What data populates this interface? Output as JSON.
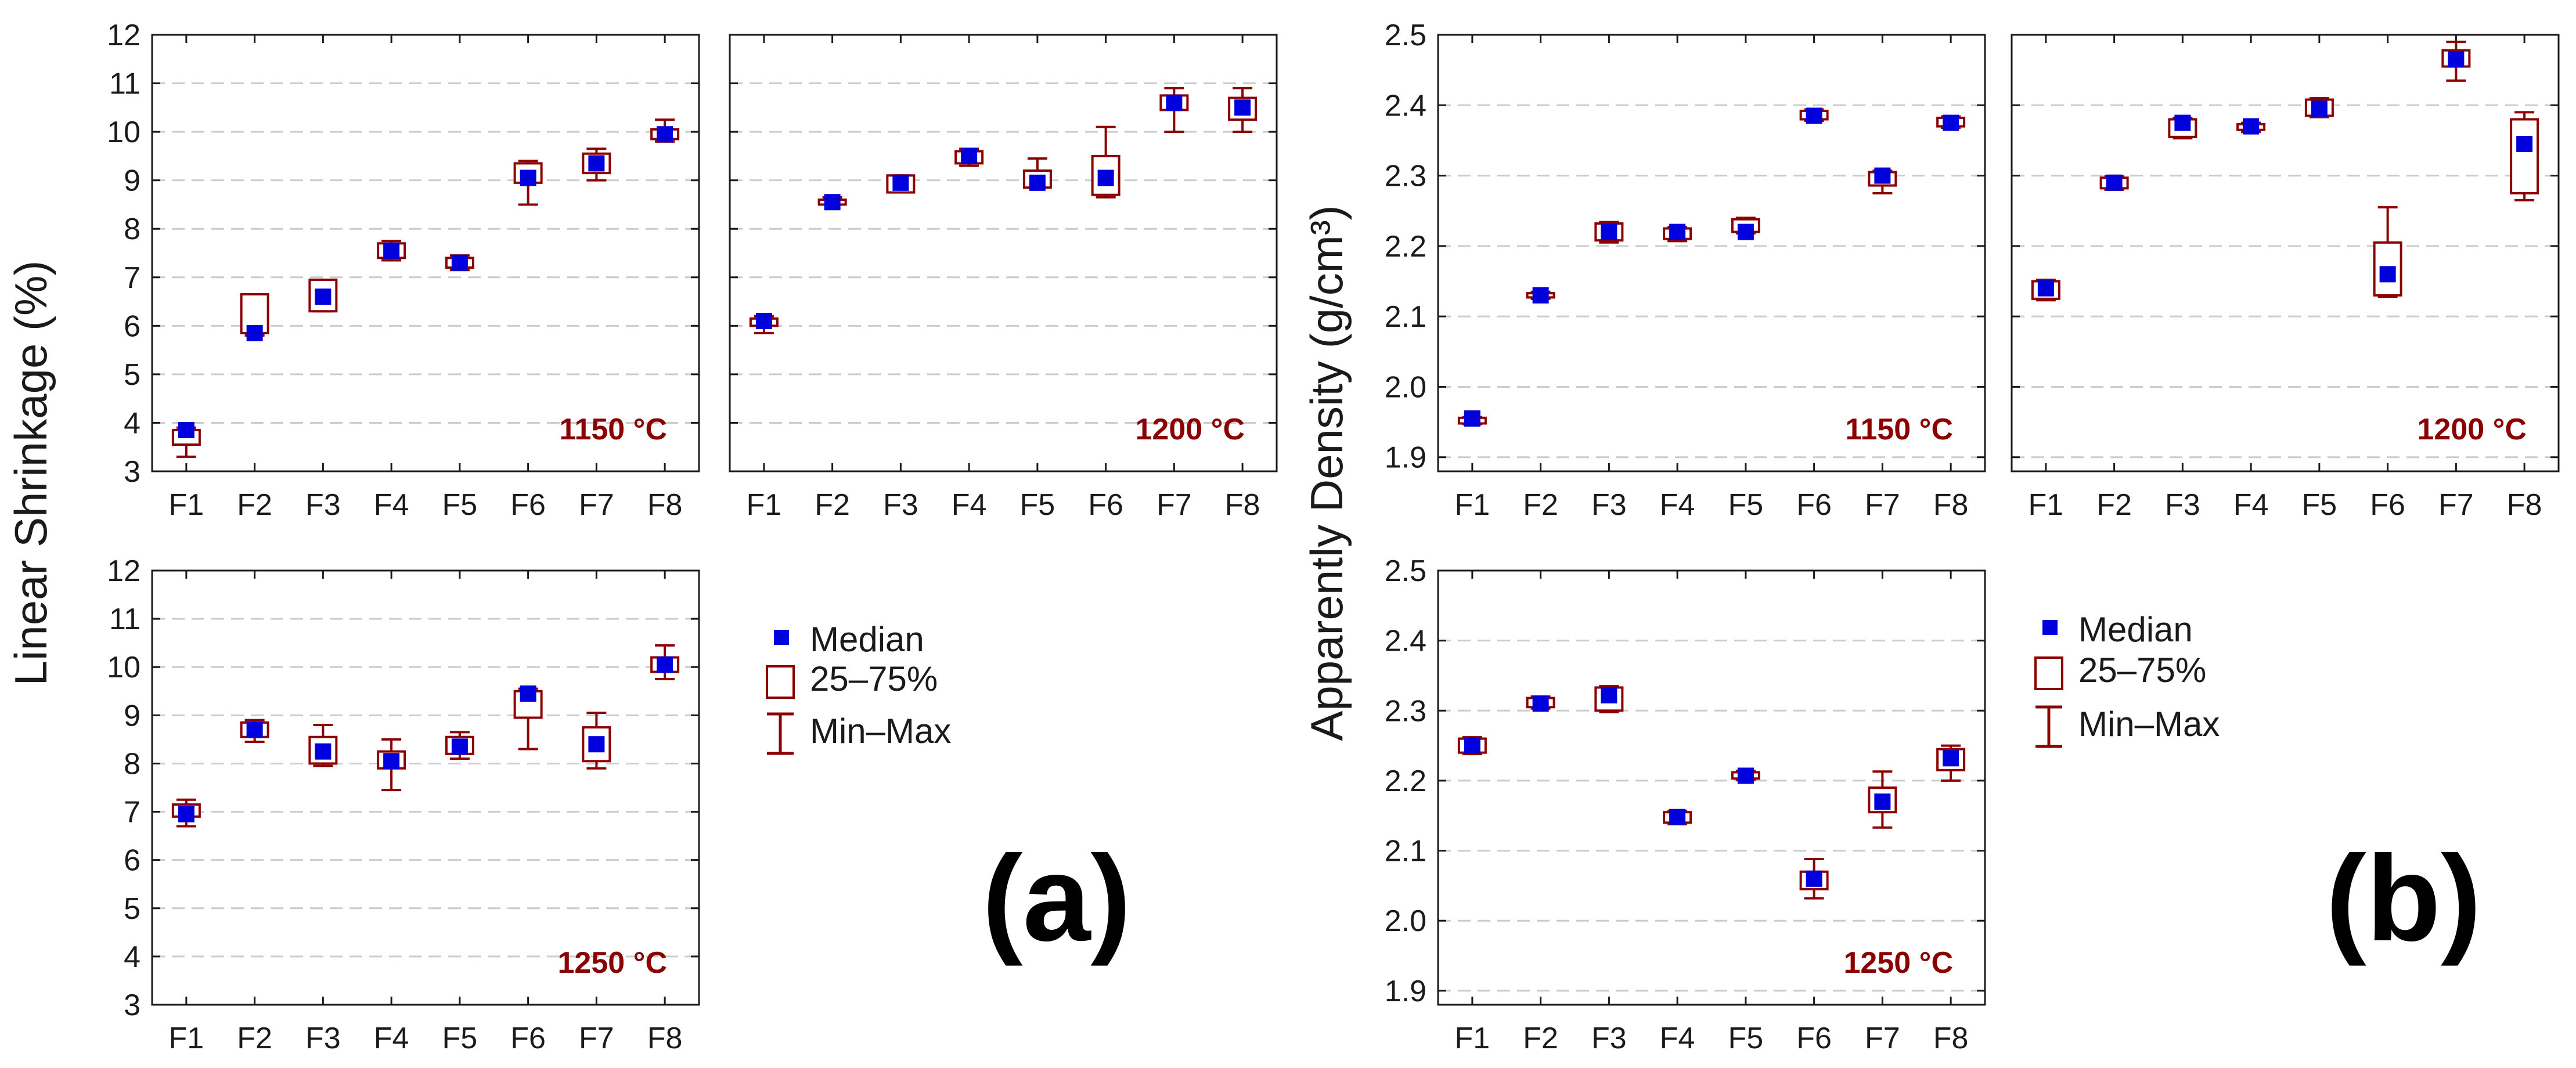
{
  "colors": {
    "median": "#0000dd",
    "box": "#8b0000",
    "whisker": "#8b0000",
    "temp_label": "#8b0000",
    "grid": "#cccccc",
    "axis": "#1a1a1a"
  },
  "figure": {
    "panel_a_label": "(a)",
    "panel_b_label": "(b)"
  },
  "legends": [
    {
      "median_label": "Median",
      "box_label": "25–75%",
      "range_label": "Min–Max"
    },
    {
      "median_label": "Median",
      "box_label": "25–75%",
      "range_label": "Min–Max"
    }
  ],
  "chart_data": [
    {
      "type": "box",
      "title": "1150 °C",
      "group": "a",
      "ylabel": "Linear Shrinkage (%)",
      "ylim": [
        3,
        12
      ],
      "yticks": [
        "3",
        "4",
        "5",
        "6",
        "7",
        "8",
        "9",
        "10",
        "11",
        "12"
      ],
      "categories": [
        "F1",
        "F2",
        "F3",
        "F4",
        "F5",
        "F6",
        "F7",
        "F8"
      ],
      "median": [
        3.85,
        5.85,
        6.6,
        7.55,
        7.3,
        9.05,
        9.35,
        9.95
      ],
      "q1": [
        3.55,
        5.85,
        6.3,
        7.4,
        7.2,
        8.95,
        9.15,
        9.85
      ],
      "q3": [
        3.85,
        6.65,
        6.95,
        7.7,
        7.4,
        9.35,
        9.55,
        10.05
      ],
      "min": [
        3.3,
        5.8,
        6.3,
        7.35,
        7.15,
        8.5,
        9.0,
        9.8
      ],
      "max": [
        3.9,
        6.65,
        6.95,
        7.75,
        7.45,
        9.4,
        9.65,
        10.25
      ]
    },
    {
      "type": "box",
      "title": "1200 °C",
      "group": "a",
      "ylabel": "Linear Shrinkage (%)",
      "ylim": [
        3,
        12
      ],
      "yticks": [
        "3",
        "4",
        "5",
        "6",
        "7",
        "8",
        "9",
        "10",
        "11",
        "12"
      ],
      "categories": [
        "F1",
        "F2",
        "F3",
        "F4",
        "F5",
        "F6",
        "F7",
        "F8"
      ],
      "median": [
        6.1,
        8.55,
        8.95,
        9.5,
        8.95,
        9.05,
        10.6,
        10.5
      ],
      "q1": [
        6.0,
        8.5,
        8.75,
        9.35,
        8.85,
        8.7,
        10.45,
        10.25
      ],
      "q3": [
        6.15,
        8.6,
        9.1,
        9.6,
        9.2,
        9.5,
        10.75,
        10.7
      ],
      "min": [
        5.85,
        8.5,
        8.75,
        9.3,
        8.85,
        8.65,
        10.0,
        10.0
      ],
      "max": [
        6.2,
        8.65,
        9.1,
        9.65,
        9.45,
        10.1,
        10.9,
        10.9
      ]
    },
    {
      "type": "box",
      "title": "1250 °C",
      "group": "a",
      "ylabel": "Linear Shrinkage (%)",
      "ylim": [
        3,
        12
      ],
      "yticks": [
        "3",
        "4",
        "5",
        "6",
        "7",
        "8",
        "9",
        "10",
        "11",
        "12"
      ],
      "categories": [
        "F1",
        "F2",
        "F3",
        "F4",
        "F5",
        "F6",
        "F7",
        "F8"
      ],
      "median": [
        6.95,
        8.7,
        8.25,
        8.05,
        8.35,
        9.45,
        8.4,
        10.05
      ],
      "q1": [
        6.9,
        8.55,
        8.0,
        7.9,
        8.2,
        8.95,
        8.05,
        9.9
      ],
      "q3": [
        7.15,
        8.85,
        8.55,
        8.25,
        8.55,
        9.5,
        8.75,
        10.2
      ],
      "min": [
        6.7,
        8.45,
        7.95,
        7.45,
        8.1,
        8.3,
        7.9,
        9.75
      ],
      "max": [
        7.25,
        8.9,
        8.8,
        8.5,
        8.65,
        9.55,
        9.05,
        10.45
      ]
    },
    {
      "type": "box",
      "title": "1150 °C",
      "group": "b",
      "ylabel": "Apparently Density (g/cm³)",
      "ylim": [
        1.88,
        2.5
      ],
      "yticks": [
        "1.9",
        "2.0",
        "2.1",
        "2.2",
        "2.3",
        "2.4",
        "2.5"
      ],
      "categories": [
        "F1",
        "F2",
        "F3",
        "F4",
        "F5",
        "F6",
        "F7",
        "F8"
      ],
      "median": [
        1.955,
        2.13,
        2.22,
        2.22,
        2.22,
        2.385,
        2.3,
        2.375
      ],
      "q1": [
        1.948,
        2.127,
        2.208,
        2.21,
        2.22,
        2.38,
        2.286,
        2.37
      ],
      "q3": [
        1.956,
        2.133,
        2.232,
        2.225,
        2.238,
        2.392,
        2.305,
        2.382
      ],
      "min": [
        1.947,
        2.125,
        2.205,
        2.207,
        2.218,
        2.378,
        2.275,
        2.368
      ],
      "max": [
        1.957,
        2.135,
        2.234,
        2.227,
        2.24,
        2.394,
        2.307,
        2.384
      ]
    },
    {
      "type": "box",
      "title": "1200 °C",
      "group": "b",
      "ylabel": "Apparently Density (g/cm³)",
      "ylim": [
        1.88,
        2.5
      ],
      "yticks": [
        "1.9",
        "2.0",
        "2.1",
        "2.2",
        "2.3",
        "2.4",
        "2.5"
      ],
      "categories": [
        "F1",
        "F2",
        "F3",
        "F4",
        "F5",
        "F6",
        "F7",
        "F8"
      ],
      "median": [
        2.14,
        2.29,
        2.375,
        2.37,
        2.395,
        2.16,
        2.465,
        2.345
      ],
      "q1": [
        2.125,
        2.282,
        2.355,
        2.365,
        2.385,
        2.13,
        2.455,
        2.275
      ],
      "q3": [
        2.15,
        2.297,
        2.38,
        2.373,
        2.408,
        2.205,
        2.478,
        2.38
      ],
      "min": [
        2.123,
        2.28,
        2.353,
        2.362,
        2.383,
        2.128,
        2.435,
        2.265
      ],
      "max": [
        2.152,
        2.299,
        2.382,
        2.375,
        2.41,
        2.255,
        2.49,
        2.39
      ]
    },
    {
      "type": "box",
      "title": "1250 °C",
      "group": "b",
      "ylabel": "Apparently Density (g/cm³)",
      "ylim": [
        1.88,
        2.5
      ],
      "yticks": [
        "1.9",
        "2.0",
        "2.1",
        "2.2",
        "2.3",
        "2.4",
        "2.5"
      ],
      "categories": [
        "F1",
        "F2",
        "F3",
        "F4",
        "F5",
        "F6",
        "F7",
        "F8"
      ],
      "median": [
        2.25,
        2.31,
        2.322,
        2.148,
        2.207,
        2.06,
        2.17,
        2.232
      ],
      "q1": [
        2.24,
        2.305,
        2.3,
        2.14,
        2.203,
        2.045,
        2.155,
        2.215
      ],
      "q3": [
        2.26,
        2.318,
        2.333,
        2.155,
        2.212,
        2.07,
        2.19,
        2.245
      ],
      "min": [
        2.238,
        2.303,
        2.298,
        2.138,
        2.201,
        2.032,
        2.133,
        2.2
      ],
      "max": [
        2.262,
        2.32,
        2.335,
        2.157,
        2.214,
        2.088,
        2.213,
        2.25
      ]
    }
  ]
}
